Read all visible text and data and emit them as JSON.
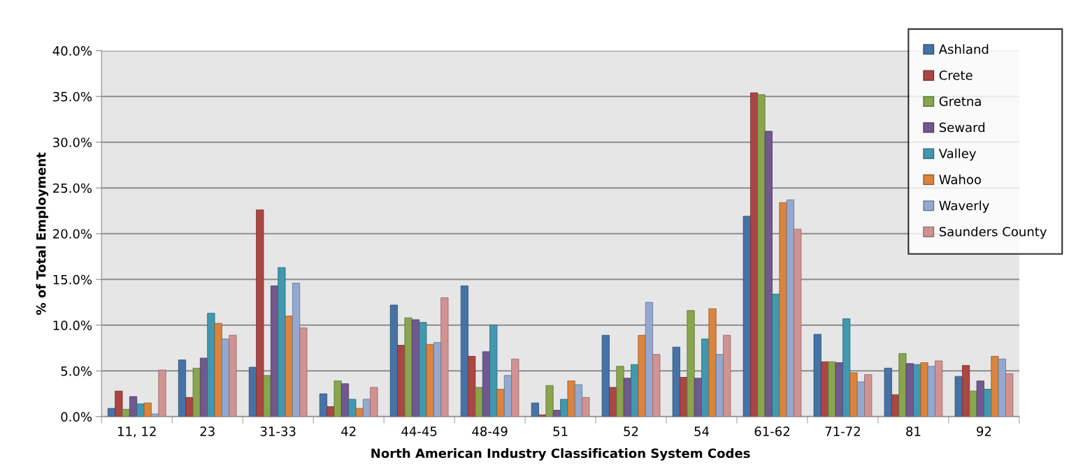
{
  "chart_data": {
    "type": "bar",
    "xlabel": "North American Industry Classification System Codes",
    "ylabel": "% of Total Employment",
    "categories": [
      "11, 12",
      "23",
      "31-33",
      "42",
      "44-45",
      "48-49",
      "51",
      "52",
      "54",
      "61-62",
      "71-72",
      "81",
      "92"
    ],
    "series": [
      {
        "name": "Ashland",
        "color": "#4572a7",
        "values": [
          0.9,
          6.2,
          5.4,
          2.5,
          12.2,
          14.3,
          1.5,
          8.9,
          7.6,
          21.9,
          9.0,
          5.3,
          4.4
        ]
      },
      {
        "name": "Crete",
        "color": "#aa4643",
        "values": [
          2.8,
          2.1,
          22.6,
          1.1,
          7.8,
          6.6,
          0.2,
          3.2,
          4.3,
          35.4,
          6.0,
          2.4,
          5.6
        ]
      },
      {
        "name": "Gretna",
        "color": "#89a54e",
        "values": [
          0.8,
          5.3,
          4.5,
          3.9,
          10.8,
          3.2,
          3.4,
          5.5,
          11.6,
          35.2,
          6.0,
          6.9,
          2.8
        ]
      },
      {
        "name": "Seward",
        "color": "#71588f",
        "values": [
          2.2,
          6.4,
          14.3,
          3.6,
          10.6,
          7.1,
          0.7,
          4.2,
          4.2,
          31.2,
          5.9,
          5.8,
          3.9
        ]
      },
      {
        "name": "Valley",
        "color": "#4198af",
        "values": [
          1.4,
          11.3,
          16.3,
          1.9,
          10.3,
          10.0,
          1.9,
          5.7,
          8.5,
          13.4,
          10.7,
          5.7,
          3.0
        ]
      },
      {
        "name": "Wahoo",
        "color": "#db843d",
        "values": [
          1.5,
          10.2,
          11.0,
          0.9,
          7.9,
          3.0,
          3.9,
          8.9,
          11.8,
          23.4,
          4.8,
          5.9,
          6.6
        ]
      },
      {
        "name": "Waverly",
        "color": "#93a9cf",
        "values": [
          0.3,
          8.5,
          14.6,
          1.9,
          8.1,
          4.5,
          3.5,
          12.5,
          6.8,
          23.7,
          3.8,
          5.5,
          6.3
        ]
      },
      {
        "name": "Saunders County",
        "color": "#d19392",
        "values": [
          5.1,
          8.9,
          9.7,
          3.2,
          13.0,
          6.3,
          2.1,
          6.8,
          8.9,
          20.5,
          4.6,
          6.1,
          4.7
        ]
      }
    ],
    "ylim": [
      0,
      40
    ],
    "yticks": [
      {
        "value": 0,
        "label": "0.0%"
      },
      {
        "value": 5,
        "label": "5.0%"
      },
      {
        "value": 10,
        "label": "10.0%"
      },
      {
        "value": 15,
        "label": "15.0%"
      },
      {
        "value": 20,
        "label": "20.0%"
      },
      {
        "value": 25,
        "label": "25.0%"
      },
      {
        "value": 30,
        "label": "30.0%"
      },
      {
        "value": 35,
        "label": "35.0%"
      },
      {
        "value": 40,
        "label": "40.0%"
      }
    ],
    "grid": "y",
    "legend": "top right"
  }
}
